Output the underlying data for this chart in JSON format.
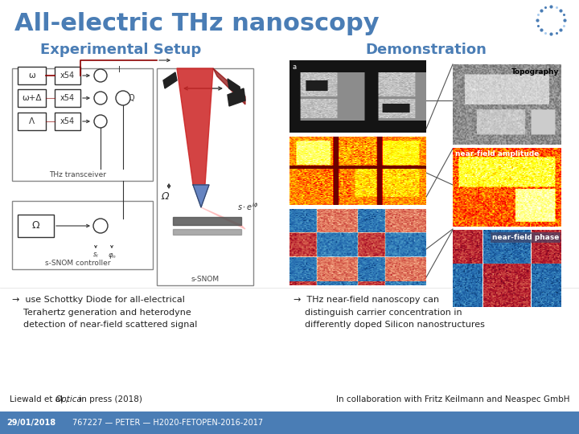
{
  "title": "All-electric THz nanoscopy",
  "title_color": "#4a7db5",
  "title_fontsize": 22,
  "bg_color": "#ffffff",
  "left_heading": "Experimental Setup",
  "right_heading": "Demonstration",
  "heading_color": "#4a7db5",
  "heading_fontsize": 13,
  "left_bullet": "→  use Schottky Diode for all-electrical\n    Terahertz generation and heterodyne\n    detection of near-field scattered signal",
  "right_bullet": "→  THz near-field nanoscopy can\n    distinguish carrier concentration in\n    differently doped Silicon nanostructures",
  "bullet_fontsize": 8,
  "bullet_color": "#222222",
  "footer_left1": "Liewald et al., ",
  "footer_left1_italic": "Optica",
  "footer_left2": " in press (2018)",
  "footer_right": "In collaboration with Fritz Keilmann and Neaspec GmbH",
  "footer_fontsize": 7.5,
  "footer_color": "#222222",
  "bar_bg": "#4a7db5",
  "bar_text_left": "29/01/2018",
  "bar_text_right": "767227 — PETER — H2020-FETOPEN-2016-2017",
  "bar_fontsize": 7,
  "bar_text_color": "#ffffff",
  "logo_color": "#4a7db5",
  "label_topography": "Topography",
  "label_amplitude": "near-field amplitude",
  "label_phase": "near-field phase",
  "label_color": "#ffffff",
  "label_fontsize": 6.5
}
